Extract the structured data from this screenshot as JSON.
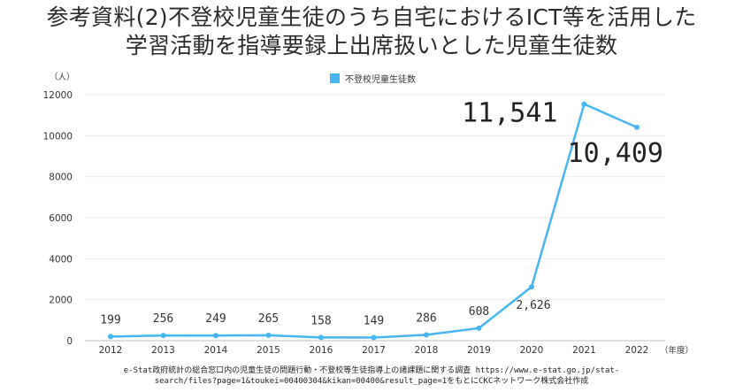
{
  "title_line1": "参考資料(2)不登校児童生徒のうち自宅におけるICT等を活用した",
  "title_line2": "学習活動を指導要録上出席扱いとした児童生徒数",
  "source_line1": "e-Stat政府統計の総合窓口内の児童生徒の問題行動・不登校等生徒指導上の諸課題に関する調査 https://www.e-stat.go.jp/stat-",
  "source_line2": "search/files?page=1&toukei=00400304&kikan=00400&result_page=1をもとにCKCネットワーク株式会社作成",
  "chart_data": {
    "type": "line",
    "x": [
      "2012",
      "2013",
      "2014",
      "2015",
      "2016",
      "2017",
      "2018",
      "2019",
      "2020",
      "2021",
      "2022"
    ],
    "series": [
      {
        "name": "不登校児童生徒数",
        "values": [
          199,
          256,
          249,
          265,
          158,
          149,
          286,
          608,
          2626,
          11541,
          10409
        ],
        "color": "#45b6ef"
      }
    ],
    "data_labels": [
      "199",
      "256",
      "249",
      "265",
      "158",
      "149",
      "286",
      "608",
      "2,626",
      "11,541",
      "10,409"
    ],
    "yticks": [
      "0",
      "2000",
      "4000",
      "6000",
      "8000",
      "10000",
      "12000"
    ],
    "ylim": [
      0,
      12000
    ],
    "ylabel_unit": "（人）",
    "xlabel_unit": "（年度）",
    "legend_position": "top-center",
    "grid": true
  }
}
